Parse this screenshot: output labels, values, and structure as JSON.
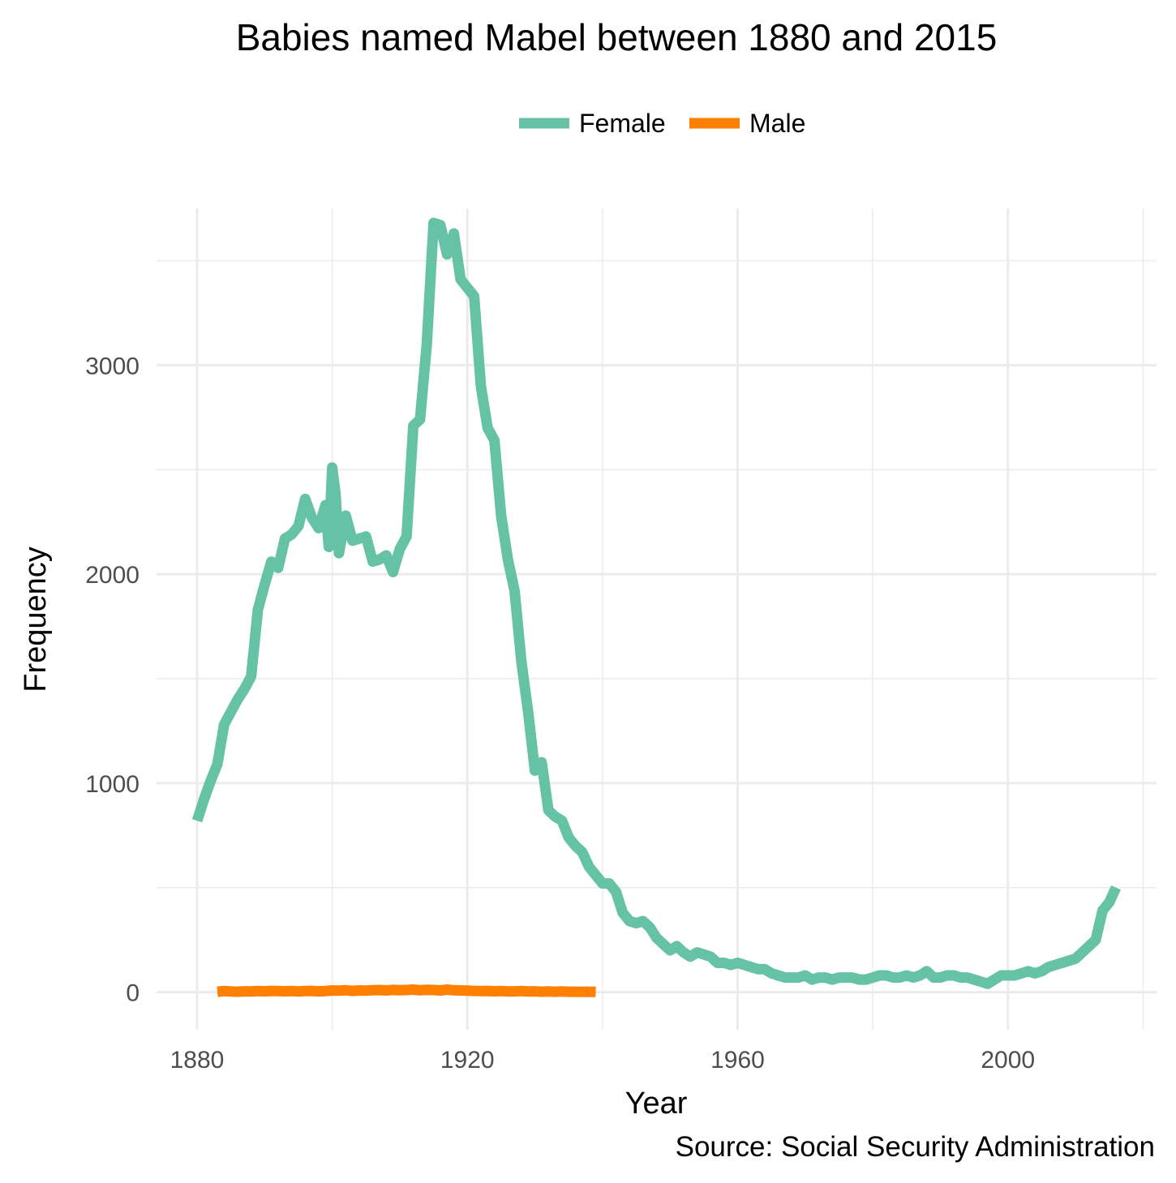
{
  "chart_data": {
    "type": "line",
    "title": "Babies named Mabel between 1880 and 2015",
    "xlabel": "Year",
    "ylabel": "Frequency",
    "caption": "Source: Social Security Administration",
    "xlim": [
      1874,
      2022
    ],
    "ylim": [
      -180,
      3750
    ],
    "x_ticks": [
      1880,
      1920,
      1960,
      2000
    ],
    "x_tick_labels": [
      "1880",
      "1920",
      "1960",
      "2000"
    ],
    "y_ticks": [
      0,
      1000,
      2000,
      3000
    ],
    "y_tick_labels": [
      "0",
      "1000",
      "2000",
      "3000"
    ],
    "grid": true,
    "legend_position": "top",
    "series": [
      {
        "name": "Female",
        "color": "#66c2a5",
        "points": [
          [
            1880,
            820
          ],
          [
            1881,
            920
          ],
          [
            1882,
            1010
          ],
          [
            1883,
            1090
          ],
          [
            1884,
            1280
          ],
          [
            1885,
            1340
          ],
          [
            1886,
            1400
          ],
          [
            1887,
            1450
          ],
          [
            1888,
            1510
          ],
          [
            1889,
            1830
          ],
          [
            1890,
            1950
          ],
          [
            1891,
            2060
          ],
          [
            1892,
            2030
          ],
          [
            1893,
            2170
          ],
          [
            1894,
            2190
          ],
          [
            1895,
            2230
          ],
          [
            1896,
            2360
          ],
          [
            1897,
            2270
          ],
          [
            1898,
            2220
          ],
          [
            1899,
            2330
          ],
          [
            1899.5,
            2130
          ],
          [
            1900,
            2510
          ],
          [
            1900.5,
            2380
          ],
          [
            1901,
            2100
          ],
          [
            1902,
            2280
          ],
          [
            1903,
            2160
          ],
          [
            1904,
            2170
          ],
          [
            1905,
            2180
          ],
          [
            1906,
            2060
          ],
          [
            1907,
            2070
          ],
          [
            1908,
            2090
          ],
          [
            1909,
            2010
          ],
          [
            1910,
            2120
          ],
          [
            1911,
            2180
          ],
          [
            1912,
            2710
          ],
          [
            1913,
            2740
          ],
          [
            1914,
            3100
          ],
          [
            1915,
            3680
          ],
          [
            1916,
            3670
          ],
          [
            1917,
            3530
          ],
          [
            1918,
            3630
          ],
          [
            1919,
            3410
          ],
          [
            1920,
            3370
          ],
          [
            1921,
            3330
          ],
          [
            1922,
            2900
          ],
          [
            1923,
            2700
          ],
          [
            1924,
            2640
          ],
          [
            1925,
            2280
          ],
          [
            1926,
            2070
          ],
          [
            1927,
            1920
          ],
          [
            1928,
            1580
          ],
          [
            1929,
            1340
          ],
          [
            1930,
            1060
          ],
          [
            1931,
            1100
          ],
          [
            1932,
            870
          ],
          [
            1933,
            840
          ],
          [
            1934,
            820
          ],
          [
            1935,
            740
          ],
          [
            1936,
            700
          ],
          [
            1937,
            670
          ],
          [
            1938,
            600
          ],
          [
            1939,
            560
          ],
          [
            1940,
            520
          ],
          [
            1941,
            520
          ],
          [
            1942,
            480
          ],
          [
            1943,
            380
          ],
          [
            1944,
            340
          ],
          [
            1945,
            330
          ],
          [
            1946,
            340
          ],
          [
            1947,
            310
          ],
          [
            1948,
            260
          ],
          [
            1949,
            230
          ],
          [
            1950,
            200
          ],
          [
            1951,
            220
          ],
          [
            1952,
            190
          ],
          [
            1953,
            170
          ],
          [
            1954,
            190
          ],
          [
            1955,
            180
          ],
          [
            1956,
            170
          ],
          [
            1957,
            140
          ],
          [
            1958,
            140
          ],
          [
            1959,
            130
          ],
          [
            1960,
            140
          ],
          [
            1961,
            130
          ],
          [
            1962,
            120
          ],
          [
            1963,
            110
          ],
          [
            1964,
            110
          ],
          [
            1965,
            90
          ],
          [
            1966,
            80
          ],
          [
            1967,
            70
          ],
          [
            1968,
            70
          ],
          [
            1969,
            70
          ],
          [
            1970,
            80
          ],
          [
            1971,
            60
          ],
          [
            1972,
            70
          ],
          [
            1973,
            70
          ],
          [
            1974,
            60
          ],
          [
            1975,
            70
          ],
          [
            1976,
            70
          ],
          [
            1977,
            70
          ],
          [
            1978,
            60
          ],
          [
            1979,
            60
          ],
          [
            1980,
            70
          ],
          [
            1981,
            80
          ],
          [
            1982,
            80
          ],
          [
            1983,
            70
          ],
          [
            1984,
            70
          ],
          [
            1985,
            80
          ],
          [
            1986,
            70
          ],
          [
            1987,
            80
          ],
          [
            1988,
            100
          ],
          [
            1989,
            70
          ],
          [
            1990,
            70
          ],
          [
            1991,
            80
          ],
          [
            1992,
            80
          ],
          [
            1993,
            70
          ],
          [
            1994,
            70
          ],
          [
            1995,
            60
          ],
          [
            1996,
            50
          ],
          [
            1997,
            40
          ],
          [
            1998,
            60
          ],
          [
            1999,
            80
          ],
          [
            2000,
            80
          ],
          [
            2001,
            80
          ],
          [
            2002,
            90
          ],
          [
            2003,
            100
          ],
          [
            2004,
            90
          ],
          [
            2005,
            100
          ],
          [
            2006,
            120
          ],
          [
            2007,
            130
          ],
          [
            2008,
            140
          ],
          [
            2009,
            150
          ],
          [
            2010,
            160
          ],
          [
            2011,
            190
          ],
          [
            2012,
            220
          ],
          [
            2013,
            250
          ],
          [
            2014,
            390
          ],
          [
            2015,
            430
          ],
          [
            2016,
            500
          ]
        ]
      },
      {
        "name": "Male",
        "color": "#ff7f00",
        "points": [
          [
            1883,
            2
          ],
          [
            1884,
            5
          ],
          [
            1885,
            3
          ],
          [
            1886,
            2
          ],
          [
            1887,
            4
          ],
          [
            1888,
            3
          ],
          [
            1889,
            5
          ],
          [
            1890,
            4
          ],
          [
            1891,
            6
          ],
          [
            1892,
            5
          ],
          [
            1893,
            4
          ],
          [
            1894,
            5
          ],
          [
            1895,
            3
          ],
          [
            1896,
            5
          ],
          [
            1897,
            6
          ],
          [
            1898,
            4
          ],
          [
            1899,
            5
          ],
          [
            1900,
            8
          ],
          [
            1901,
            7
          ],
          [
            1902,
            9
          ],
          [
            1903,
            6
          ],
          [
            1904,
            8
          ],
          [
            1905,
            7
          ],
          [
            1906,
            9
          ],
          [
            1907,
            10
          ],
          [
            1908,
            8
          ],
          [
            1909,
            11
          ],
          [
            1910,
            9
          ],
          [
            1911,
            10
          ],
          [
            1912,
            12
          ],
          [
            1913,
            9
          ],
          [
            1914,
            11
          ],
          [
            1915,
            10
          ],
          [
            1916,
            8
          ],
          [
            1917,
            12
          ],
          [
            1918,
            9
          ],
          [
            1919,
            8
          ],
          [
            1920,
            7
          ],
          [
            1921,
            6
          ],
          [
            1922,
            5
          ],
          [
            1923,
            6
          ],
          [
            1924,
            4
          ],
          [
            1925,
            5
          ],
          [
            1926,
            3
          ],
          [
            1927,
            4
          ],
          [
            1928,
            5
          ],
          [
            1929,
            3
          ],
          [
            1930,
            4
          ],
          [
            1931,
            2
          ],
          [
            1932,
            3
          ],
          [
            1933,
            2
          ],
          [
            1934,
            3
          ],
          [
            1935,
            2
          ],
          [
            1936,
            2
          ],
          [
            1937,
            1
          ],
          [
            1938,
            2
          ],
          [
            1939,
            1
          ]
        ]
      }
    ]
  }
}
